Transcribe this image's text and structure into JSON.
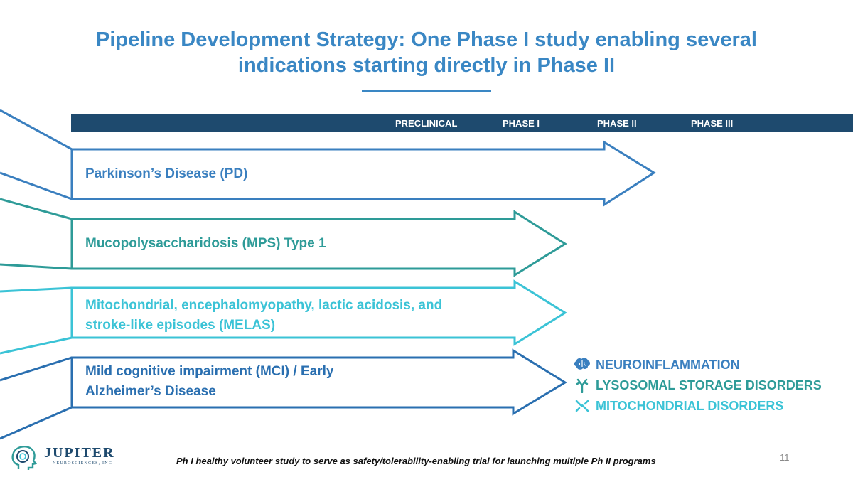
{
  "title": {
    "line1": "Pipeline Development Strategy: One Phase I study enabling several",
    "line2": "indications starting directly in Phase II"
  },
  "phases": [
    "PRECLINICAL",
    "PHASE I",
    "PHASE II",
    "PHASE III"
  ],
  "indications": [
    {
      "lines": [
        "Parkinson’s Disease (PD)"
      ],
      "color": "#3a7fbf",
      "reaches": "PHASE II"
    },
    {
      "lines": [
        "Mucopolysaccharidosis (MPS) Type 1"
      ],
      "color": "#2e9b98",
      "reaches": "PHASE II"
    },
    {
      "lines": [
        "Mitochondrial, encephalomyopathy, lactic acidosis, and",
        "stroke-like episodes (MELAS)"
      ],
      "color": "#3bc3d6",
      "reaches": "PHASE II"
    },
    {
      "lines": [
        "Mild cognitive impairment (MCI) / Early",
        "Alzheimer’s Disease"
      ],
      "color": "#2a6fb0",
      "reaches": "PHASE II"
    }
  ],
  "legend": [
    {
      "label": "NEUROINFLAMMATION",
      "icon": "brain-icon",
      "color": "#3a7fbf"
    },
    {
      "label": "LYSOSOMAL STORAGE DISORDERS",
      "icon": "antibody-icon",
      "color": "#2e9b98"
    },
    {
      "label": "MITOCHONDRIAL DISORDERS",
      "icon": "mitochondria-icon",
      "color": "#3bc3d6"
    }
  ],
  "footnote": "Ph I healthy volunteer study to serve as safety/tolerability-enabling trial for launching multiple Ph II programs",
  "page_number": "11",
  "logo": {
    "name": "JUPITER",
    "sub": "NEUROSCIENCES, INC"
  }
}
